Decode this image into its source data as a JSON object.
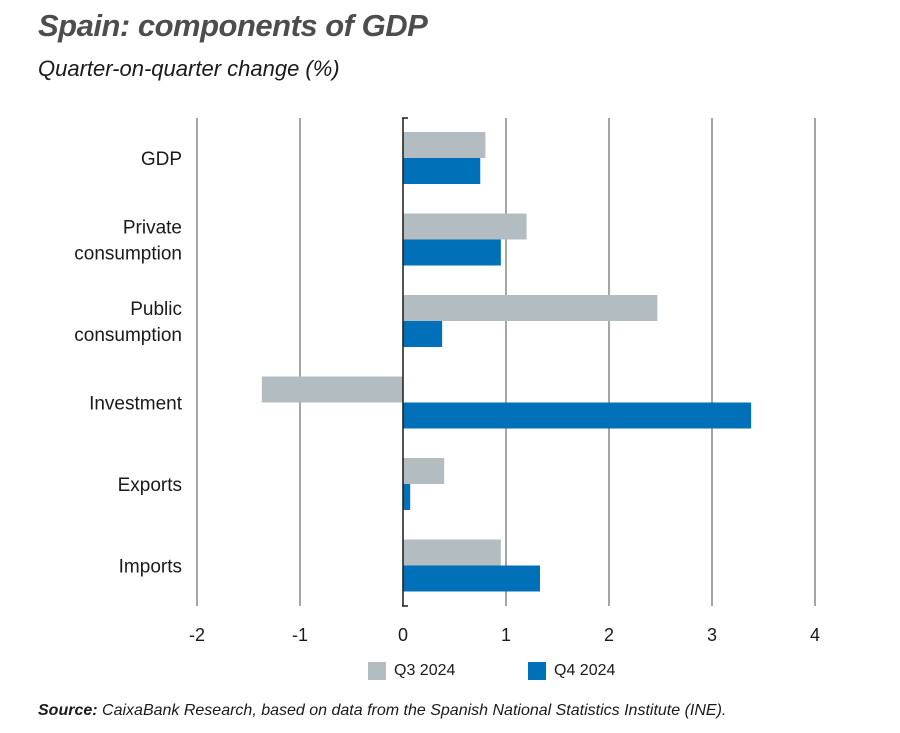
{
  "chart_data": {
    "type": "bar",
    "orientation": "horizontal",
    "title": "Spain: components of GDP",
    "subtitle": "Quarter-on-quarter change (%)",
    "categories": [
      [
        "GDP"
      ],
      [
        "Private",
        "consumption"
      ],
      [
        "Public",
        "consumption"
      ],
      [
        "Investment"
      ],
      [
        "Exports"
      ],
      [
        "Imports"
      ]
    ],
    "series": [
      {
        "name": "Q3 2024",
        "color": "#b3bcc0",
        "values": [
          0.8,
          1.2,
          2.47,
          -1.37,
          0.4,
          0.95
        ]
      },
      {
        "name": "Q4 2024",
        "color": "#0070b8",
        "values": [
          0.75,
          0.95,
          0.38,
          3.38,
          0.07,
          1.33
        ]
      }
    ],
    "xlim": [
      -2,
      4
    ],
    "xticks": [
      "-2",
      "-1",
      "0",
      "1",
      "2",
      "3",
      "4"
    ],
    "xtick_values": [
      -2,
      -1,
      0,
      1,
      2,
      3,
      4
    ],
    "grid": true,
    "legend_position": "bottom"
  },
  "source": {
    "label": "Source:",
    "text": "CaixaBank Research, based on data from the Spanish National Statistics Institute (INE)."
  }
}
